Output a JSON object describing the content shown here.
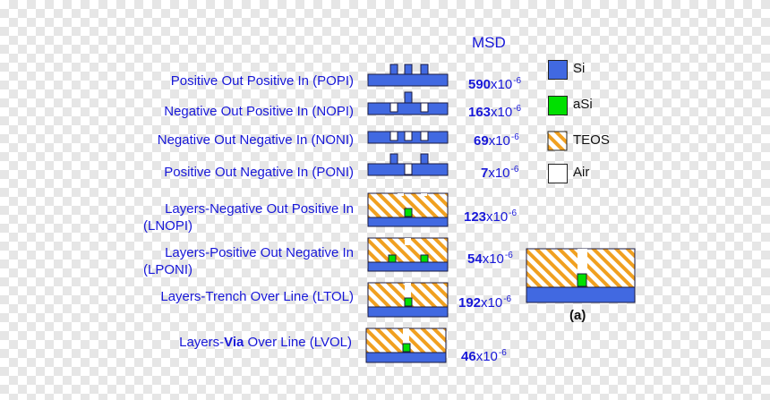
{
  "header": {
    "msd_label": "MSD"
  },
  "colors": {
    "si": "#4169e1",
    "asi": "#00e000",
    "teos_stripe": "#f0a020",
    "air": "#ffffff",
    "text": "#1818d8"
  },
  "rows": [
    {
      "label_lines": [
        "Positive Out Positive In (POPI)"
      ],
      "msd_mantissa": "590",
      "msd_base": "x10",
      "msd_exp": "-6"
    },
    {
      "label_lines": [
        "Negative Out Positive In (NOPI)"
      ],
      "msd_mantissa": "163",
      "msd_base": "x10",
      "msd_exp": "-6"
    },
    {
      "label_lines": [
        "Negative Out Negative In (NONI)"
      ],
      "msd_mantissa": "69",
      "msd_base": "x10",
      "msd_exp": "-6"
    },
    {
      "label_lines": [
        "Positive Out Negative In (PONI)"
      ],
      "msd_mantissa": "7",
      "msd_base": "x10",
      "msd_exp": "-6"
    },
    {
      "label_lines": [
        "Layers-Negative Out Positive In",
        "(LNOPI)"
      ],
      "msd_mantissa": "123",
      "msd_base": "x10",
      "msd_exp": "-6"
    },
    {
      "label_lines": [
        "Layers-Positive Out Negative In",
        "(LPONI)"
      ],
      "msd_mantissa": "54",
      "msd_base": "x10",
      "msd_exp": "-6"
    },
    {
      "label_lines": [
        "Layers-Trench Over Line (LTOL)"
      ],
      "msd_mantissa": "192",
      "msd_base": "x10",
      "msd_exp": "-6"
    },
    {
      "label_lines": [
        "Layers-",
        "Via",
        " Over Line (LVOL)"
      ],
      "msd_mantissa": "46",
      "msd_base": "x10",
      "msd_exp": "-6"
    }
  ],
  "legend": [
    {
      "key": "si",
      "label": "Si"
    },
    {
      "key": "asi",
      "label": "aSi"
    },
    {
      "key": "teos",
      "label": "TEOS"
    },
    {
      "key": "air",
      "label": "Air"
    }
  ],
  "panel": {
    "caption": "(a)"
  }
}
